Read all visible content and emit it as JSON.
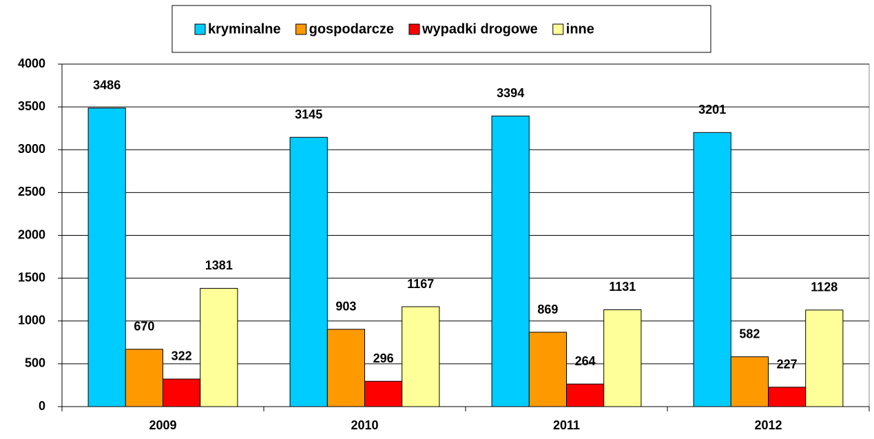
{
  "chart_data": {
    "type": "bar",
    "categories": [
      "2009",
      "2010",
      "2011",
      "2012"
    ],
    "series": [
      {
        "name": "kryminalne",
        "color": "#00ccff",
        "values": [
          3486,
          3145,
          3394,
          3201
        ]
      },
      {
        "name": "gospodarcze",
        "color": "#ff9900",
        "values": [
          670,
          903,
          869,
          582
        ]
      },
      {
        "name": "wypadki drogowe",
        "color": "#ff0000",
        "values": [
          322,
          296,
          264,
          227
        ]
      },
      {
        "name": "inne",
        "color": "#ffff99",
        "values": [
          1381,
          1167,
          1131,
          1128
        ]
      }
    ],
    "ylim": [
      0,
      4000
    ],
    "yticks": [
      0,
      500,
      1000,
      1500,
      2000,
      2500,
      3000,
      3500,
      4000
    ],
    "grid": true,
    "legend": "top"
  }
}
